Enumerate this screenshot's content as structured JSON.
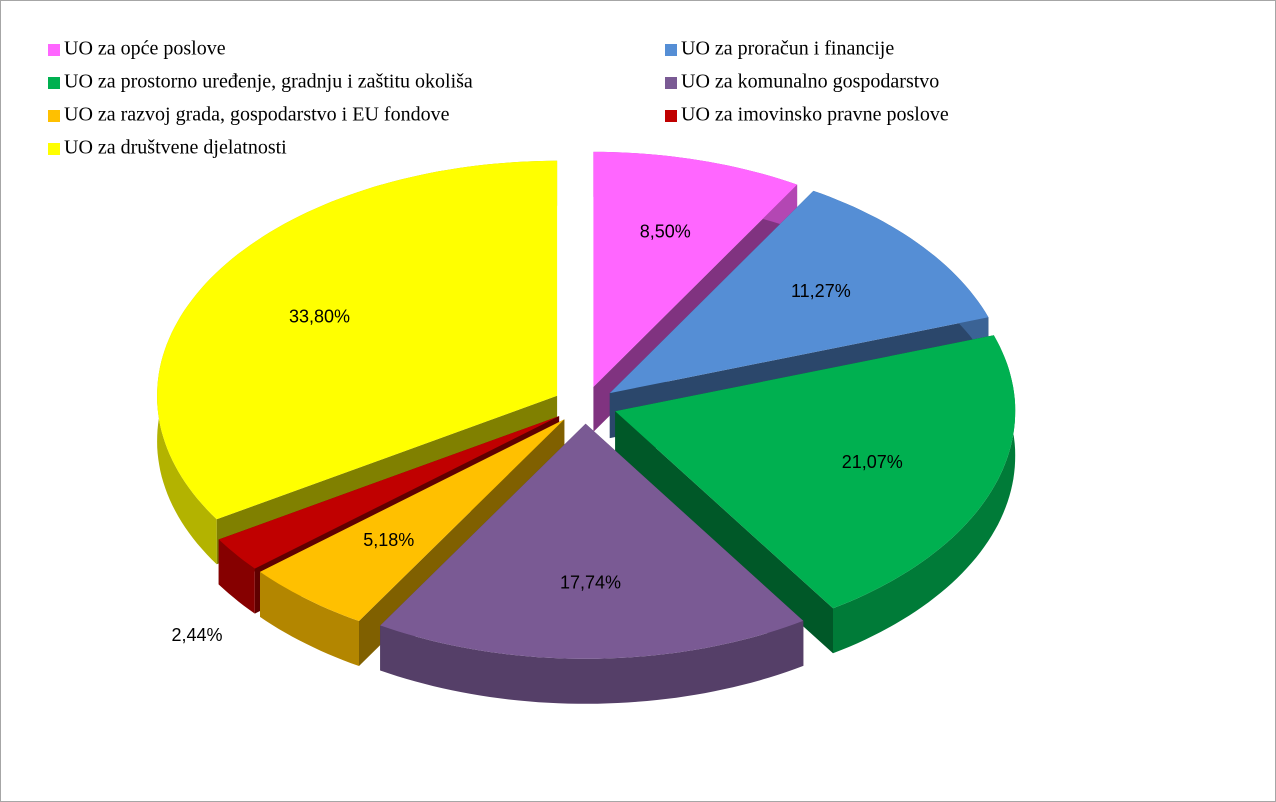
{
  "chart_data": {
    "type": "pie",
    "categories": [
      "UO za opće poslove",
      "UO za proračun i financije",
      "UO za prostorno uređenje, gradnju  i zaštitu okoliša",
      "UO za komunalno gospodarstvo",
      "UO za razvoj grada, gospodarstvo i EU fondove",
      "UO za imovinsko pravne poslove",
      "UO za društvene djelatnosti"
    ],
    "values": [
      8.5,
      11.27,
      21.07,
      17.74,
      5.18,
      2.44,
      33.8
    ],
    "value_labels": [
      "8,50%",
      "11,27%",
      "21,07%",
      "17,74%",
      "5,18%",
      "2,44%",
      "33,80%"
    ],
    "colors": [
      "#ff66ff",
      "#558ed5",
      "#00b050",
      "#7a5a94",
      "#ffc000",
      "#c00000",
      "#ffff00"
    ],
    "legend": "top"
  }
}
